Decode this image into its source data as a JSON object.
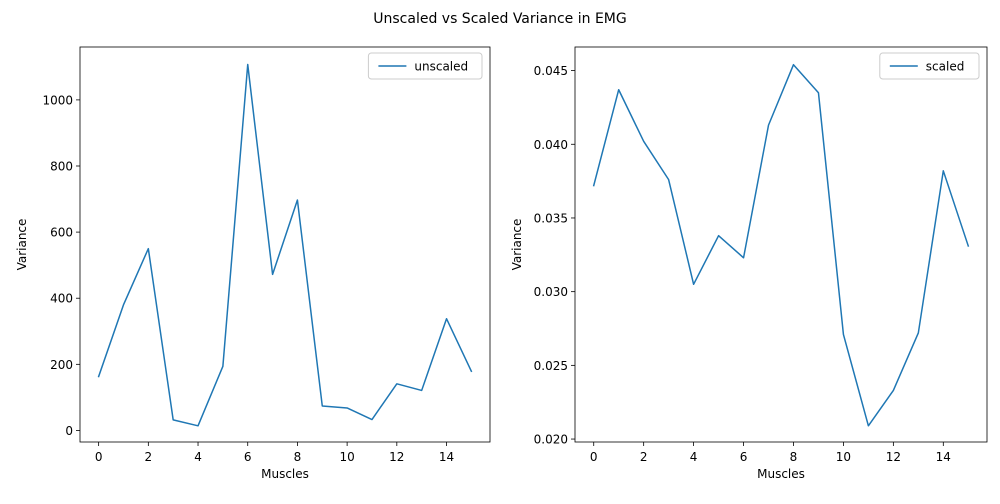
{
  "suptitle": "Unscaled vs Scaled Variance in EMG",
  "chart_data": [
    {
      "type": "line",
      "xlabel": "Muscles",
      "ylabel": "Variance",
      "xlim": [
        -0.75,
        15.75
      ],
      "ylim": [
        -35,
        1160
      ],
      "xticks": [
        0,
        2,
        4,
        6,
        8,
        10,
        12,
        14
      ],
      "xtick_labels": [
        "0",
        "2",
        "4",
        "6",
        "8",
        "10",
        "12",
        "14"
      ],
      "yticks": [
        0,
        200,
        400,
        600,
        800,
        1000
      ],
      "ytick_labels": [
        "0",
        "200",
        "400",
        "600",
        "800",
        "1000"
      ],
      "grid": false,
      "legend": "top-right",
      "x": [
        0,
        1,
        2,
        3,
        4,
        5,
        6,
        7,
        8,
        9,
        10,
        11,
        12,
        13,
        14,
        15
      ],
      "series": [
        {
          "name": "unscaled",
          "color": "#1f77b4",
          "values": [
            163,
            380,
            550,
            32,
            14,
            194,
            1107,
            472,
            697,
            74,
            68,
            33,
            141,
            121,
            338,
            179
          ]
        }
      ]
    },
    {
      "type": "line",
      "xlabel": "Muscles",
      "ylabel": "Variance",
      "xlim": [
        -0.75,
        15.75
      ],
      "ylim": [
        0.0198,
        0.0466
      ],
      "xticks": [
        0,
        2,
        4,
        6,
        8,
        10,
        12,
        14
      ],
      "xtick_labels": [
        "0",
        "2",
        "4",
        "6",
        "8",
        "10",
        "12",
        "14"
      ],
      "yticks": [
        0.02,
        0.025,
        0.03,
        0.035,
        0.04,
        0.045
      ],
      "ytick_labels": [
        "0.020",
        "0.025",
        "0.030",
        "0.035",
        "0.040",
        "0.045"
      ],
      "grid": false,
      "legend": "top-right",
      "x": [
        0,
        1,
        2,
        3,
        4,
        5,
        6,
        7,
        8,
        9,
        10,
        11,
        12,
        13,
        14,
        15
      ],
      "series": [
        {
          "name": "scaled",
          "color": "#1f77b4",
          "values": [
            0.0372,
            0.0437,
            0.0402,
            0.0376,
            0.0305,
            0.0338,
            0.0323,
            0.0413,
            0.0454,
            0.0435,
            0.0271,
            0.0209,
            0.0233,
            0.0272,
            0.0382,
            0.0331
          ]
        }
      ]
    }
  ]
}
